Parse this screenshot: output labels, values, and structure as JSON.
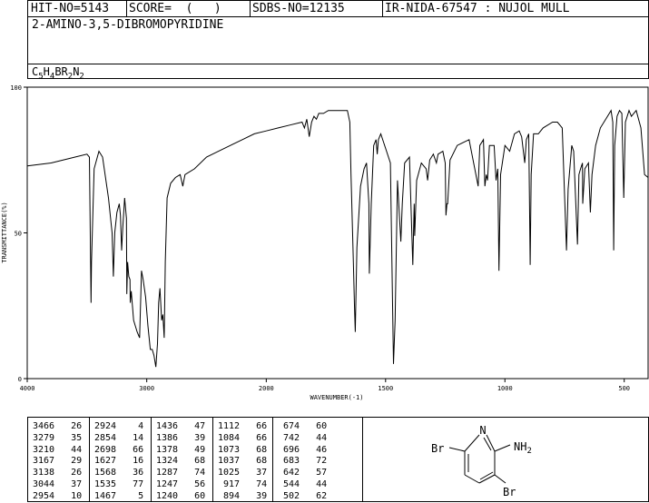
{
  "header": {
    "hit_no": "HIT-NO=5143",
    "score": "SCORE=  (   )",
    "sdbs_no": "SDBS-NO=12135",
    "ir_nida": "IR-NIDA-67547 : NUJOL MULL",
    "compound_name": "2-AMINO-3,5-DIBROMOPYRIDINE",
    "formula_parts": [
      "C",
      "5",
      "H",
      "4",
      "BR",
      "2",
      "N",
      "2"
    ]
  },
  "chart_data": {
    "type": "line",
    "xlabel": "WAVENUMBER(-1)",
    "ylabel": "TRANSMITTANCE(%)",
    "xlim": [
      4000,
      400
    ],
    "ylim": [
      0,
      100
    ],
    "x_ticks": [
      "4000",
      "3000",
      "2000",
      "1500",
      "1000",
      "500"
    ],
    "y_ticks": [
      "100",
      "50",
      "0"
    ],
    "spectrum": [
      [
        4000,
        73
      ],
      [
        3800,
        74
      ],
      [
        3600,
        76
      ],
      [
        3500,
        77
      ],
      [
        3480,
        76
      ],
      [
        3470,
        40
      ],
      [
        3466,
        26
      ],
      [
        3462,
        40
      ],
      [
        3440,
        72
      ],
      [
        3400,
        78
      ],
      [
        3370,
        76
      ],
      [
        3320,
        62
      ],
      [
        3290,
        50
      ],
      [
        3279,
        35
      ],
      [
        3268,
        50
      ],
      [
        3250,
        57
      ],
      [
        3230,
        60
      ],
      [
        3220,
        56
      ],
      [
        3210,
        44
      ],
      [
        3200,
        52
      ],
      [
        3185,
        62
      ],
      [
        3170,
        55
      ],
      [
        3167,
        29
      ],
      [
        3160,
        40
      ],
      [
        3150,
        35
      ],
      [
        3140,
        34
      ],
      [
        3138,
        26
      ],
      [
        3130,
        30
      ],
      [
        3110,
        20
      ],
      [
        3080,
        16
      ],
      [
        3060,
        14
      ],
      [
        3044,
        37
      ],
      [
        3030,
        34
      ],
      [
        3010,
        28
      ],
      [
        2990,
        18
      ],
      [
        2970,
        10
      ],
      [
        2954,
        10
      ],
      [
        2940,
        8
      ],
      [
        2924,
        4
      ],
      [
        2910,
        12
      ],
      [
        2900,
        26
      ],
      [
        2890,
        31
      ],
      [
        2875,
        20
      ],
      [
        2865,
        22
      ],
      [
        2854,
        14
      ],
      [
        2845,
        40
      ],
      [
        2830,
        62
      ],
      [
        2800,
        67
      ],
      [
        2760,
        69
      ],
      [
        2720,
        70
      ],
      [
        2698,
        66
      ],
      [
        2680,
        70
      ],
      [
        2600,
        72
      ],
      [
        2500,
        76
      ],
      [
        2400,
        78
      ],
      [
        2300,
        80
      ],
      [
        2200,
        82
      ],
      [
        2100,
        84
      ],
      [
        2000,
        85
      ],
      [
        1950,
        86
      ],
      [
        1900,
        87
      ],
      [
        1850,
        88
      ],
      [
        1840,
        86
      ],
      [
        1830,
        89
      ],
      [
        1820,
        83
      ],
      [
        1810,
        88
      ],
      [
        1800,
        90
      ],
      [
        1790,
        89
      ],
      [
        1780,
        91
      ],
      [
        1760,
        91
      ],
      [
        1740,
        92
      ],
      [
        1720,
        92
      ],
      [
        1700,
        92
      ],
      [
        1680,
        92
      ],
      [
        1660,
        92
      ],
      [
        1650,
        88
      ],
      [
        1645,
        70
      ],
      [
        1635,
        40
      ],
      [
        1630,
        24
      ],
      [
        1627,
        16
      ],
      [
        1620,
        45
      ],
      [
        1605,
        66
      ],
      [
        1590,
        72
      ],
      [
        1580,
        74
      ],
      [
        1570,
        60
      ],
      [
        1568,
        36
      ],
      [
        1560,
        60
      ],
      [
        1550,
        80
      ],
      [
        1540,
        82
      ],
      [
        1535,
        77
      ],
      [
        1530,
        82
      ],
      [
        1520,
        84
      ],
      [
        1500,
        79
      ],
      [
        1480,
        74
      ],
      [
        1467,
        5
      ],
      [
        1460,
        20
      ],
      [
        1450,
        68
      ],
      [
        1436,
        47
      ],
      [
        1430,
        60
      ],
      [
        1420,
        74
      ],
      [
        1400,
        76
      ],
      [
        1386,
        39
      ],
      [
        1380,
        60
      ],
      [
        1378,
        49
      ],
      [
        1370,
        68
      ],
      [
        1350,
        74
      ],
      [
        1330,
        72
      ],
      [
        1324,
        68
      ],
      [
        1315,
        75
      ],
      [
        1300,
        77
      ],
      [
        1287,
        74
      ],
      [
        1280,
        77
      ],
      [
        1260,
        78
      ],
      [
        1250,
        74
      ],
      [
        1247,
        56
      ],
      [
        1243,
        60
      ],
      [
        1240,
        60
      ],
      [
        1230,
        75
      ],
      [
        1200,
        80
      ],
      [
        1150,
        82
      ],
      [
        1112,
        66
      ],
      [
        1105,
        80
      ],
      [
        1090,
        82
      ],
      [
        1084,
        66
      ],
      [
        1078,
        70
      ],
      [
        1073,
        68
      ],
      [
        1065,
        80
      ],
      [
        1045,
        80
      ],
      [
        1037,
        68
      ],
      [
        1030,
        72
      ],
      [
        1025,
        37
      ],
      [
        1018,
        70
      ],
      [
        1000,
        80
      ],
      [
        980,
        78
      ],
      [
        960,
        84
      ],
      [
        940,
        85
      ],
      [
        930,
        83
      ],
      [
        917,
        74
      ],
      [
        910,
        82
      ],
      [
        900,
        84
      ],
      [
        894,
        39
      ],
      [
        890,
        70
      ],
      [
        880,
        84
      ],
      [
        860,
        84
      ],
      [
        840,
        86
      ],
      [
        800,
        88
      ],
      [
        780,
        88
      ],
      [
        760,
        86
      ],
      [
        742,
        44
      ],
      [
        735,
        65
      ],
      [
        720,
        80
      ],
      [
        712,
        78
      ],
      [
        696,
        46
      ],
      [
        690,
        70
      ],
      [
        683,
        72
      ],
      [
        675,
        74
      ],
      [
        674,
        60
      ],
      [
        665,
        72
      ],
      [
        650,
        74
      ],
      [
        642,
        57
      ],
      [
        635,
        70
      ],
      [
        620,
        80
      ],
      [
        600,
        86
      ],
      [
        570,
        90
      ],
      [
        555,
        92
      ],
      [
        548,
        88
      ],
      [
        544,
        44
      ],
      [
        540,
        80
      ],
      [
        530,
        90
      ],
      [
        520,
        92
      ],
      [
        510,
        91
      ],
      [
        502,
        62
      ],
      [
        495,
        88
      ],
      [
        480,
        92
      ],
      [
        470,
        90
      ],
      [
        450,
        92
      ],
      [
        430,
        86
      ],
      [
        415,
        70
      ],
      [
        400,
        69
      ]
    ],
    "peak_table": [
      [
        3466,
        26
      ],
      [
        3279,
        35
      ],
      [
        3210,
        44
      ],
      [
        3167,
        29
      ],
      [
        3138,
        26
      ],
      [
        3044,
        37
      ],
      [
        2954,
        10
      ],
      [
        2924,
        4
      ],
      [
        2854,
        14
      ],
      [
        2698,
        66
      ],
      [
        1627,
        16
      ],
      [
        1568,
        36
      ],
      [
        1535,
        77
      ],
      [
        1467,
        5
      ],
      [
        1436,
        47
      ],
      [
        1386,
        39
      ],
      [
        1378,
        49
      ],
      [
        1324,
        68
      ],
      [
        1287,
        74
      ],
      [
        1247,
        56
      ],
      [
        1240,
        60
      ],
      [
        1112,
        66
      ],
      [
        1084,
        66
      ],
      [
        1073,
        68
      ],
      [
        1037,
        68
      ],
      [
        1025,
        37
      ],
      [
        917,
        74
      ],
      [
        894,
        39
      ],
      [
        674,
        60
      ],
      [
        742,
        44
      ],
      [
        696,
        46
      ],
      [
        683,
        72
      ],
      [
        642,
        57
      ],
      [
        544,
        44
      ],
      [
        502,
        62
      ]
    ]
  },
  "structure": {
    "labels": {
      "n": "N",
      "nh2": "NH",
      "nh2_sub": "2",
      "br_left": "Br",
      "br_bottom": "Br"
    }
  }
}
